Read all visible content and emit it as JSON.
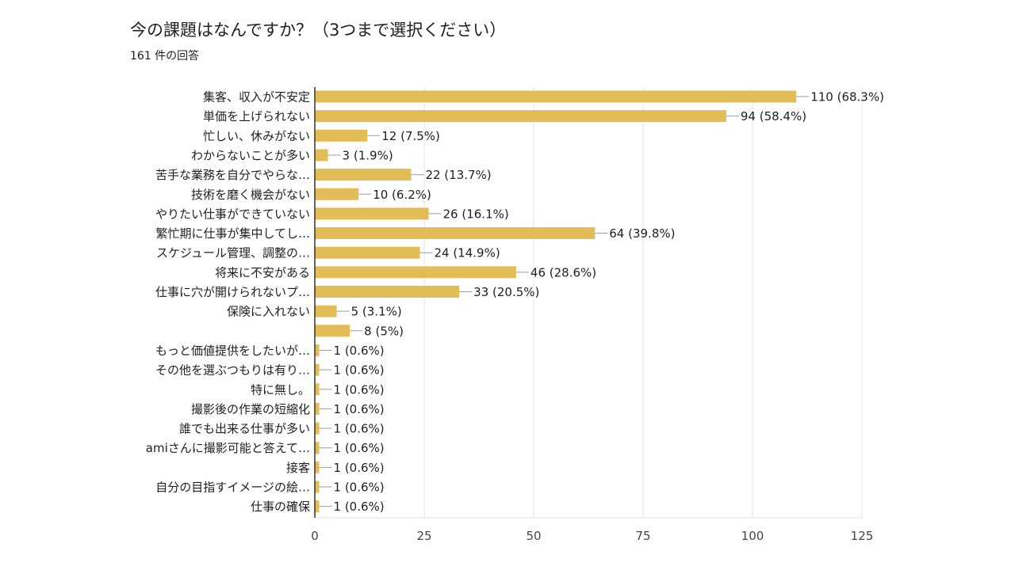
{
  "question": {
    "title": "今の課題はなんですか？（3つまで選択ください）",
    "response_count": "161 件の回答"
  },
  "chart_data": {
    "type": "bar",
    "orientation": "horizontal",
    "bar_color": "#e2bc57",
    "categories": [
      "集客、収入が不安定",
      "単価を上げられない",
      "忙しい、休みがない",
      "わからないことが多い",
      "苦手な業務を自分でやらな…",
      "技術を磨く機会がない",
      "やりたい仕事ができていない",
      "繁忙期に仕事が集中してし…",
      "スケジュール管理、調整の…",
      "将来に不安がある",
      "仕事に穴が開けられないプ…",
      "保険に入れない",
      "",
      "もっと価値提供をしたいが…",
      "その他を選ぶつもりは有り…",
      "特に無し。",
      "撮影後の作業の短縮化",
      "誰でも出来る仕事が多い",
      "amiさんに撮影可能と答えて…",
      "接客",
      "自分の目指すイメージの絵…",
      "仕事の確保"
    ],
    "values": [
      110,
      94,
      12,
      3,
      22,
      10,
      26,
      64,
      24,
      46,
      33,
      5,
      8,
      1,
      1,
      1,
      1,
      1,
      1,
      1,
      1,
      1
    ],
    "data_labels": [
      "110 (68.3%)",
      "94 (58.4%)",
      "12 (7.5%)",
      "3 (1.9%)",
      "22 (13.7%)",
      "10 (6.2%)",
      "26 (16.1%)",
      "64 (39.8%)",
      "24 (14.9%)",
      "46 (28.6%)",
      "33 (20.5%)",
      "5 (3.1%)",
      "8 (5%)",
      "1 (0.6%)",
      "1 (0.6%)",
      "1 (0.6%)",
      "1 (0.6%)",
      "1 (0.6%)",
      "1 (0.6%)",
      "1 (0.6%)",
      "1 (0.6%)",
      "1 (0.6%)"
    ],
    "xlim": [
      0,
      125
    ],
    "xticks": [
      0,
      25,
      50,
      75,
      100,
      125
    ],
    "grid": true
  }
}
